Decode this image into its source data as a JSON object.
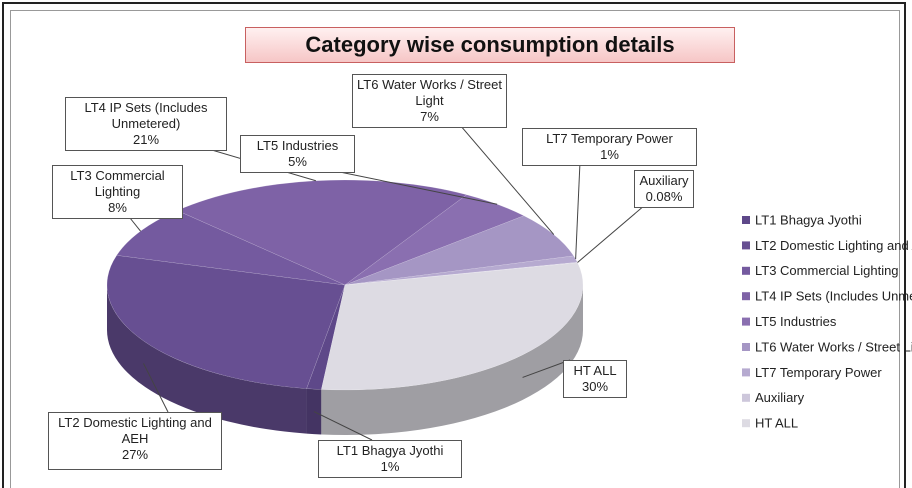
{
  "chart_data": {
    "type": "pie",
    "title": "Category wise consumption details",
    "categories": [
      "LT1 Bhagya Jyothi",
      "LT2 Domestic Lighting and AEH",
      "LT3 Commercial Lighting",
      "LT4 IP Sets (Includes Unmetered)",
      "LT5 Industries",
      "LT6 Water Works / Street Light",
      "LT7 Temporary Power",
      "Auxiliary",
      "HT ALL"
    ],
    "values": [
      1,
      27,
      8,
      21,
      5,
      7,
      1,
      0.08,
      30
    ],
    "value_labels": [
      "1%",
      "27%",
      "8%",
      "21%",
      "5%",
      "7%",
      "1%",
      "0.08%",
      "30%"
    ],
    "colors": [
      "#5e4889",
      "#674f92",
      "#745a9f",
      "#7e62a6",
      "#8a6fb0",
      "#a596c4",
      "#b6aad0",
      "#cdc7db",
      "#dddbe3"
    ],
    "legend": "right"
  }
}
